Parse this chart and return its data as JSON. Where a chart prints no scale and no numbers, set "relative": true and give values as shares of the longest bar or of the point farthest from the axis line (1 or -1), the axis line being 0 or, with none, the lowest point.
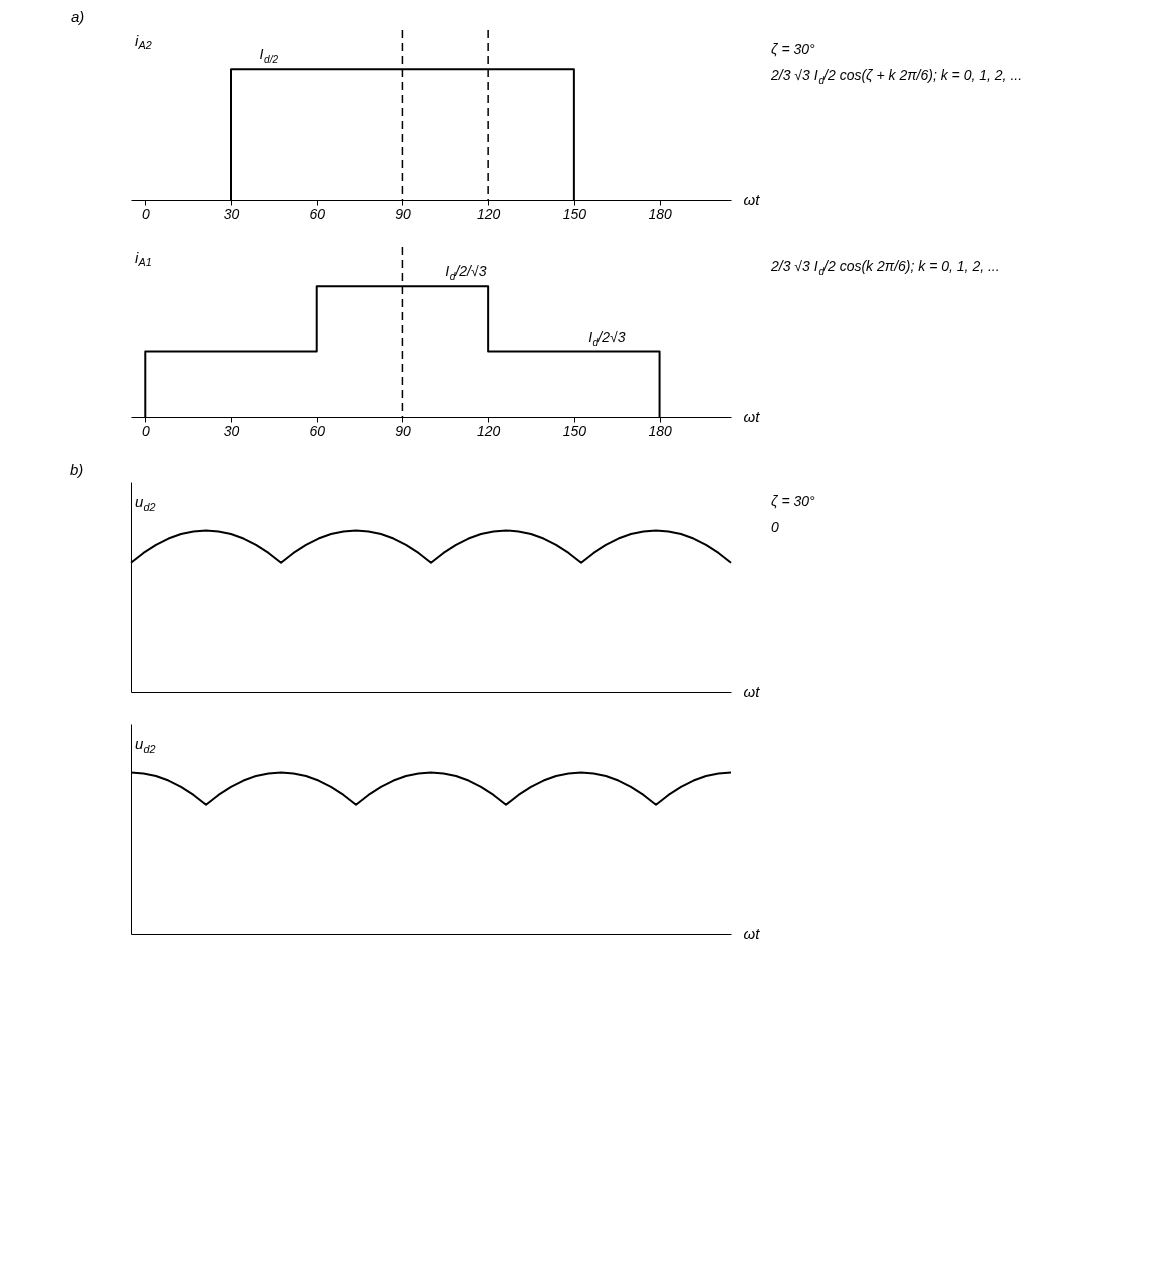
{
  "chart_data": [
    {
      "type": "line",
      "title": "a)",
      "xlabel": "ωt",
      "relative": true,
      "xlim": [
        -5,
        205
      ],
      "xticks": [
        0,
        30,
        60,
        90,
        120,
        150,
        180
      ],
      "series": [
        {
          "name": "i$_{A2}$",
          "color": "#000000",
          "x": [
            30,
            30,
            150,
            150
          ],
          "values": [
            0,
            1,
            1,
            0
          ]
        }
      ],
      "ref_lines": [
        {
          "axis": "x",
          "value": 90,
          "line_style": "dashed"
        },
        {
          "axis": "x",
          "value": 120,
          "line_style": "dashed"
        }
      ],
      "annotations": [
        {
          "text": "I$_{d/2}$",
          "x": 40,
          "y": 1
        },
        "ζ = 30°",
        "2/3 √3 I$_{d}$/2 cos(ζ + k 2π/6); k = 0, 1, 2, ..."
      ]
    },
    {
      "type": "line",
      "xlabel": "ωt",
      "relative": true,
      "xlim": [
        -5,
        205
      ],
      "xticks": [
        0,
        30,
        60,
        90,
        120,
        150,
        180
      ],
      "series": [
        {
          "name": "i$_{A1}$",
          "color": "#000000",
          "x": [
            0,
            0,
            60,
            60,
            120,
            120,
            180,
            180
          ],
          "values": [
            0,
            0.5,
            0.5,
            1,
            1,
            0.5,
            0.5,
            0
          ]
        }
      ],
      "ref_lines": [
        {
          "axis": "x",
          "value": 90,
          "line_style": "dashed"
        }
      ],
      "annotations": [
        {
          "text": "I$_{d}$/2/√3",
          "x": 105,
          "y": 1
        },
        {
          "text": "I$_{d}$/2√3",
          "x": 155,
          "y": 0.5
        },
        "2/3 √3 I$_{d}$/2 cos(k 2π/6); k = 0, 1, 2, ..."
      ]
    },
    {
      "type": "line",
      "title": "b)",
      "xlabel": "ωt",
      "relative": true,
      "tick_labels": false,
      "categories": [
        null,
        null,
        null,
        null,
        null,
        null,
        null,
        null,
        null,
        null,
        null,
        null,
        null,
        null,
        null,
        null,
        null,
        null,
        null,
        null,
        null,
        null,
        null,
        null,
        null,
        null,
        null,
        null,
        null,
        null,
        null,
        null,
        null,
        null,
        null,
        null,
        null,
        null,
        null,
        null,
        null,
        null,
        null,
        null,
        null,
        null,
        null,
        null,
        null
      ],
      "series": [
        {
          "name": "u$_{d2}$",
          "color": "#000000",
          "values": [
            0.8,
            0.861,
            0.911,
            0.95,
            0.978,
            0.994,
            1,
            0.994,
            0.978,
            0.95,
            0.911,
            0.861,
            0.8,
            0.861,
            0.911,
            0.95,
            0.978,
            0.994,
            1,
            0.994,
            0.978,
            0.95,
            0.911,
            0.861,
            0.8,
            0.861,
            0.911,
            0.95,
            0.978,
            0.994,
            1,
            0.994,
            0.978,
            0.95,
            0.911,
            0.861,
            0.8,
            0.861,
            0.911,
            0.95,
            0.978,
            0.994,
            1,
            0.994,
            0.978,
            0.95,
            0.911,
            0.861,
            0.8
          ]
        }
      ],
      "annotations": [
        "ζ = 30°",
        "0"
      ]
    },
    {
      "type": "line",
      "xlabel": "ωt",
      "relative": true,
      "tick_labels": false,
      "categories": [
        null,
        null,
        null,
        null,
        null,
        null,
        null,
        null,
        null,
        null,
        null,
        null,
        null,
        null,
        null,
        null,
        null,
        null,
        null,
        null,
        null,
        null,
        null,
        null,
        null,
        null,
        null,
        null,
        null,
        null,
        null,
        null,
        null,
        null,
        null,
        null,
        null,
        null,
        null,
        null,
        null,
        null,
        null,
        null,
        null,
        null,
        null,
        null,
        null
      ],
      "series": [
        {
          "name": "u$_{d2}$",
          "color": "#000000",
          "values": [
            1,
            0.994,
            0.978,
            0.95,
            0.911,
            0.861,
            0.8,
            0.861,
            0.911,
            0.95,
            0.978,
            0.994,
            1,
            0.994,
            0.978,
            0.95,
            0.911,
            0.861,
            0.8,
            0.861,
            0.911,
            0.95,
            0.978,
            0.994,
            1,
            0.994,
            0.978,
            0.95,
            0.911,
            0.861,
            0.8,
            0.861,
            0.911,
            0.95,
            0.978,
            0.994,
            1,
            0.994,
            0.978,
            0.95,
            0.911,
            0.861,
            0.8,
            0.861,
            0.911,
            0.95,
            0.978,
            0.994,
            1
          ]
        }
      ]
    }
  ]
}
